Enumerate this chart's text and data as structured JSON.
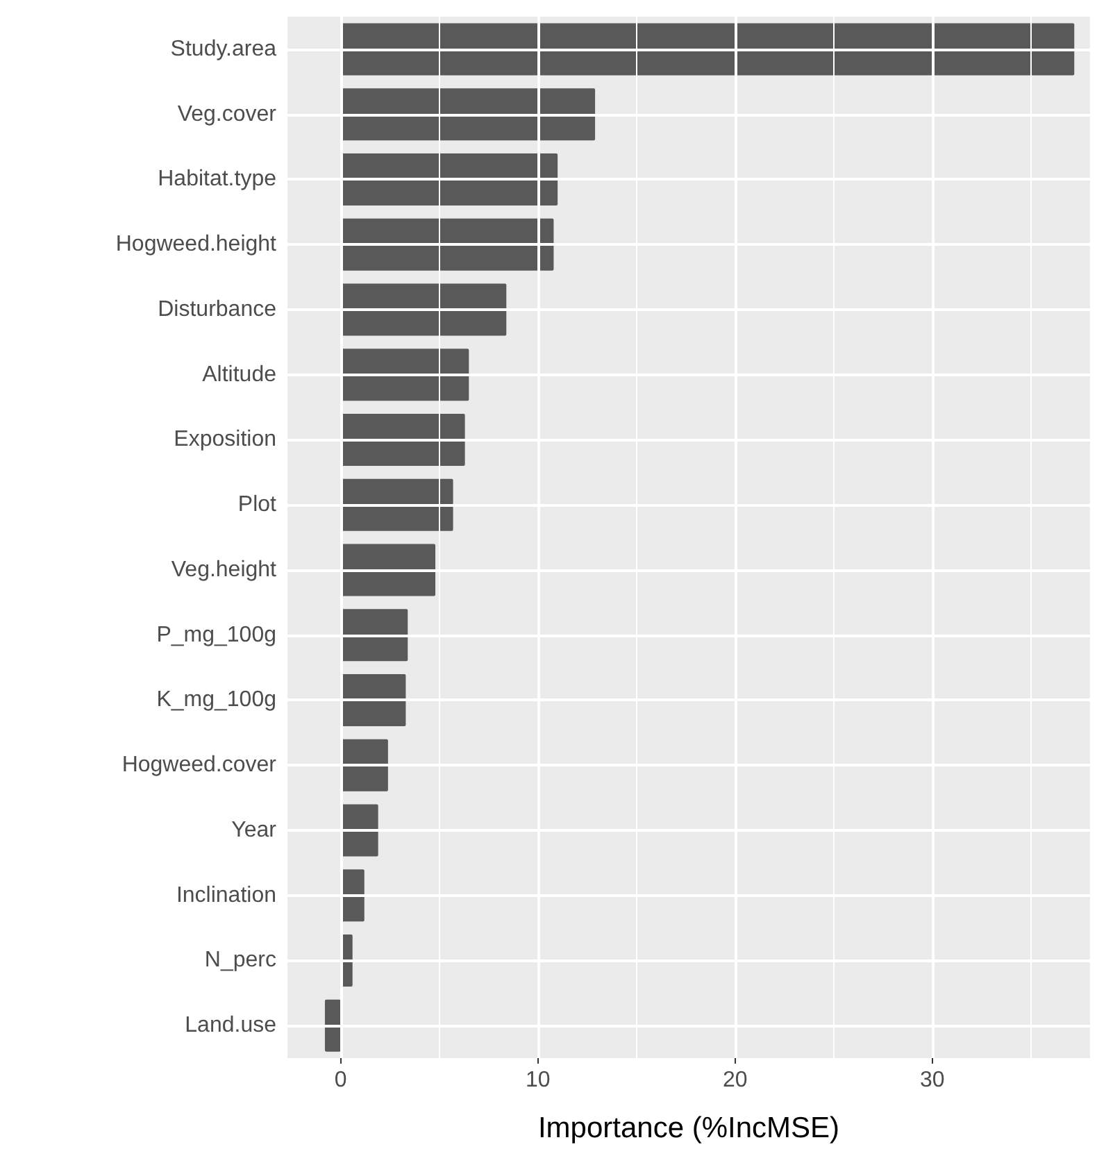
{
  "chart_data": {
    "type": "bar",
    "orientation": "horizontal",
    "xlabel": "Importance (%IncMSE)",
    "categories": [
      "Study.area",
      "Veg.cover",
      "Habitat.type",
      "Hogweed.height",
      "Disturbance",
      "Altitude",
      "Exposition",
      "Plot",
      "Veg.height",
      "P_mg_100g",
      "K_mg_100g",
      "Hogweed.cover",
      "Year",
      "Inclination",
      "N_perc",
      "Land.use"
    ],
    "values": [
      37.2,
      12.9,
      11.0,
      10.8,
      8.4,
      6.5,
      6.3,
      5.7,
      4.8,
      3.4,
      3.3,
      2.4,
      1.9,
      1.2,
      0.6,
      -0.8
    ],
    "color": "#595959",
    "xlim": [
      -2.7,
      38
    ],
    "xticks": [
      0,
      {
        "value": 5,
        "label": null
      },
      10,
      {
        "value": 15,
        "label": null
      },
      20,
      {
        "value": 25,
        "label": null
      },
      30,
      {
        "value": 35,
        "label": null
      }
    ],
    "grid": true
  }
}
